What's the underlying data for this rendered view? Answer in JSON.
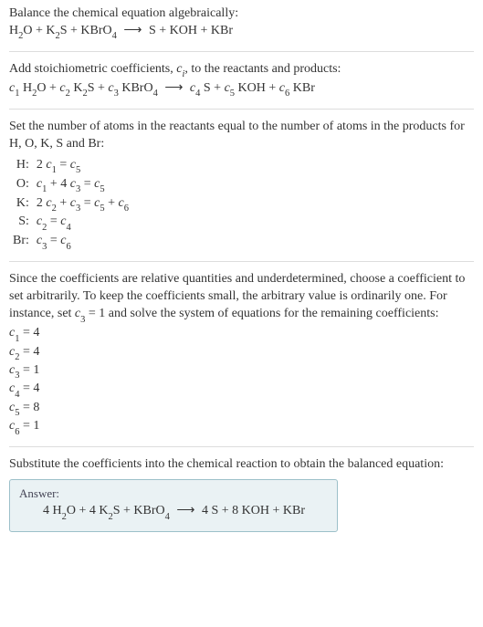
{
  "title_line1": "Balance the chemical equation algebraically:",
  "title_eq": {
    "lhs": "H₂O + K₂S + KBrO₄",
    "arrow": "⟶",
    "rhs": "S + KOH + KBr"
  },
  "add_text_before": "Add stoichiometric coefficients, ",
  "add_text_ci": "cᵢ",
  "add_text_after": ", to the reactants and products:",
  "coef_eq": {
    "lhs": "c₁ H₂O + c₂ K₂S + c₃ KBrO₄",
    "arrow": "⟶",
    "rhs": "c₄ S + c₅ KOH + c₆ KBr"
  },
  "set_text": "Set the number of atoms in the reactants equal to the number of atoms in the products for H, O, K, S and Br:",
  "balance_rows": [
    {
      "el": "H:",
      "eq": "2 c₁ = c₅"
    },
    {
      "el": "O:",
      "eq": "c₁ + 4 c₃ = c₅"
    },
    {
      "el": "K:",
      "eq": "2 c₂ + c₃ = c₅ + c₆"
    },
    {
      "el": "S:",
      "eq": "c₂ = c₄"
    },
    {
      "el": "Br:",
      "eq": "c₃ = c₆"
    }
  ],
  "since_text_a": "Since the coefficients are relative quantities and underdetermined, choose a coefficient to set arbitrarily. To keep the coefficients small, the arbitrary value is ordinarily one. For instance, set ",
  "since_c3": "c₃ = 1",
  "since_text_b": " and solve the system of equations for the remaining coefficients:",
  "solved": [
    "c₁ = 4",
    "c₂ = 4",
    "c₃ = 1",
    "c₄ = 4",
    "c₅ = 8",
    "c₆ = 1"
  ],
  "substitute_text": "Substitute the coefficients into the chemical reaction to obtain the balanced equation:",
  "answer_label": "Answer:",
  "answer_eq": {
    "lhs": "4 H₂O + 4 K₂S + KBrO₄",
    "arrow": "⟶",
    "rhs": "4 S + 8 KOH + KBr"
  },
  "colors": {
    "text": "#333333",
    "divider": "#dddddd",
    "answer_bg": "#eaf2f4",
    "answer_border": "#9cc0c9"
  },
  "fontsize_body": 14
}
